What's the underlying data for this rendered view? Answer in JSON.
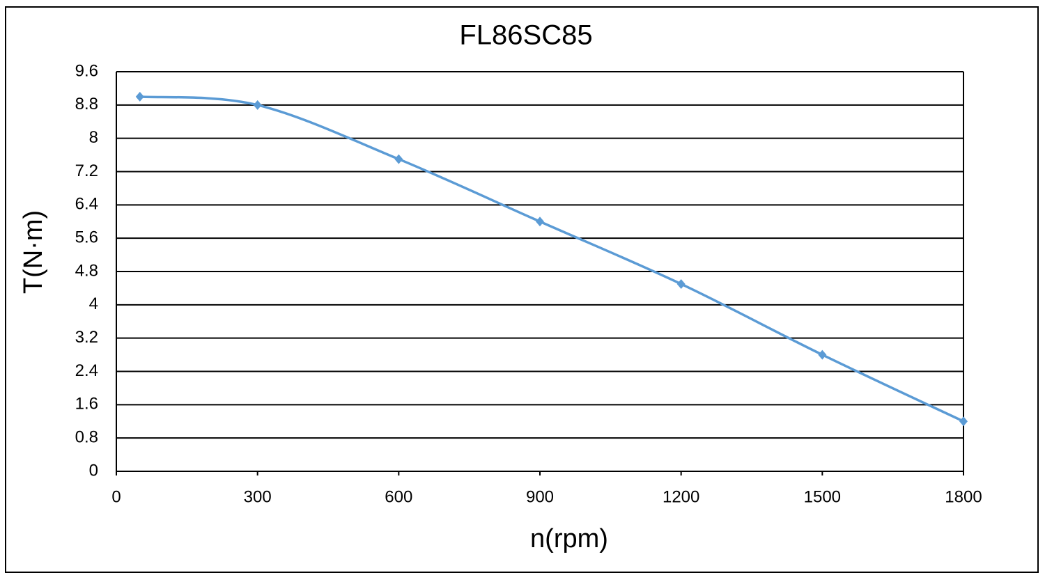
{
  "chart_data": {
    "type": "line",
    "title": "FL86SC85",
    "x_label": "n(rpm)",
    "y_label": "T(N·m)",
    "x": [
      50,
      300,
      600,
      900,
      1200,
      1500,
      1800
    ],
    "series": [
      {
        "name": "FL86SC85",
        "color": "#5b9bd5",
        "values": [
          9.0,
          8.8,
          7.5,
          6.0,
          4.5,
          2.8,
          1.2
        ]
      }
    ],
    "xlim": [
      0,
      1800
    ],
    "xticks": [
      0,
      300,
      600,
      900,
      1200,
      1500,
      1800
    ],
    "ylim": [
      0,
      9.6
    ],
    "yticks": [
      0,
      0.8,
      1.6,
      2.4,
      3.2,
      4,
      4.8,
      5.6,
      6.4,
      7.2,
      8,
      8.8,
      9.6
    ],
    "grid": true,
    "smooth": true
  }
}
